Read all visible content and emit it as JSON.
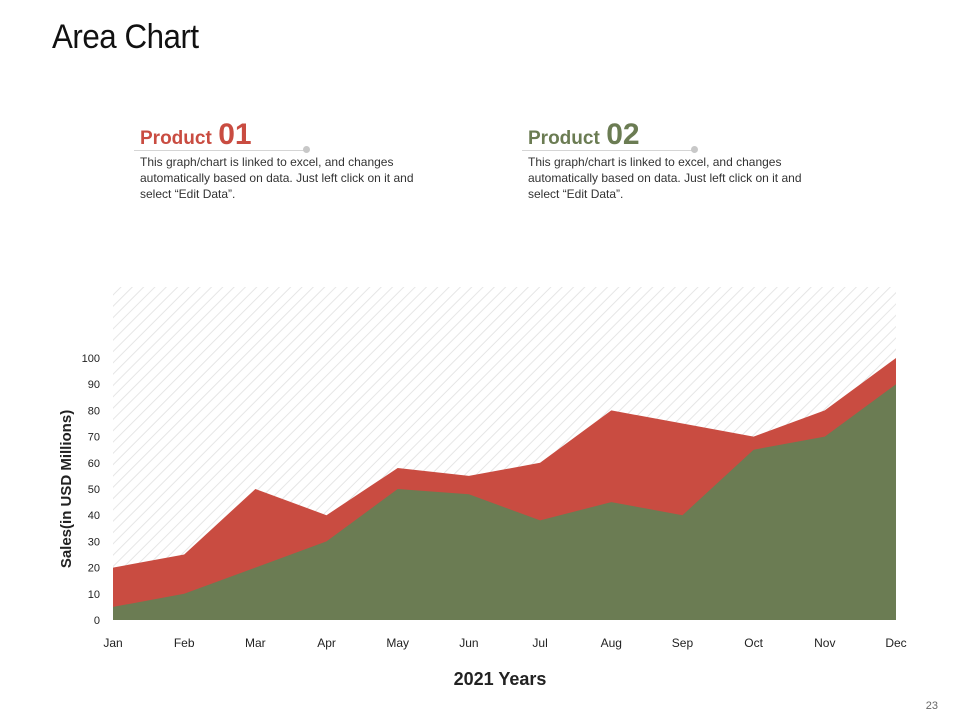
{
  "page": {
    "title": "Area Chart",
    "page_number": "23"
  },
  "products": [
    {
      "name": "Product",
      "number": "01",
      "description": "This graph/chart is linked to excel, and changes automatically based on data. Just left click on it and select “Edit Data”.",
      "color": "#c94c41"
    },
    {
      "name": "Product",
      "number": "02",
      "description": "This graph/chart is linked to excel, and changes automatically based on data. Just left click on it and select “Edit Data”.",
      "color": "#6b7c53"
    }
  ],
  "chart_data": {
    "type": "area",
    "categories": [
      "Jan",
      "Feb",
      "Mar",
      "Apr",
      "May",
      "Jun",
      "Jul",
      "Aug",
      "Sep",
      "Oct",
      "Nov",
      "Dec"
    ],
    "series": [
      {
        "name": "Product 01",
        "color": "#c94c41",
        "values": [
          20,
          25,
          50,
          40,
          58,
          55,
          60,
          80,
          75,
          70,
          80,
          100
        ]
      },
      {
        "name": "Product 02",
        "color": "#6b7c53",
        "values": [
          5,
          10,
          20,
          30,
          50,
          48,
          38,
          45,
          40,
          65,
          70,
          90
        ]
      }
    ],
    "xlabel": "2021 Years",
    "ylabel": "Sales(in USD Millions)",
    "ylim": [
      0,
      100
    ],
    "yticks": [
      "0",
      "10",
      "20",
      "30",
      "40",
      "50",
      "60",
      "70",
      "80",
      "90",
      "100"
    ],
    "background": "diagonal-hatch",
    "grid": false,
    "legend": "none"
  }
}
